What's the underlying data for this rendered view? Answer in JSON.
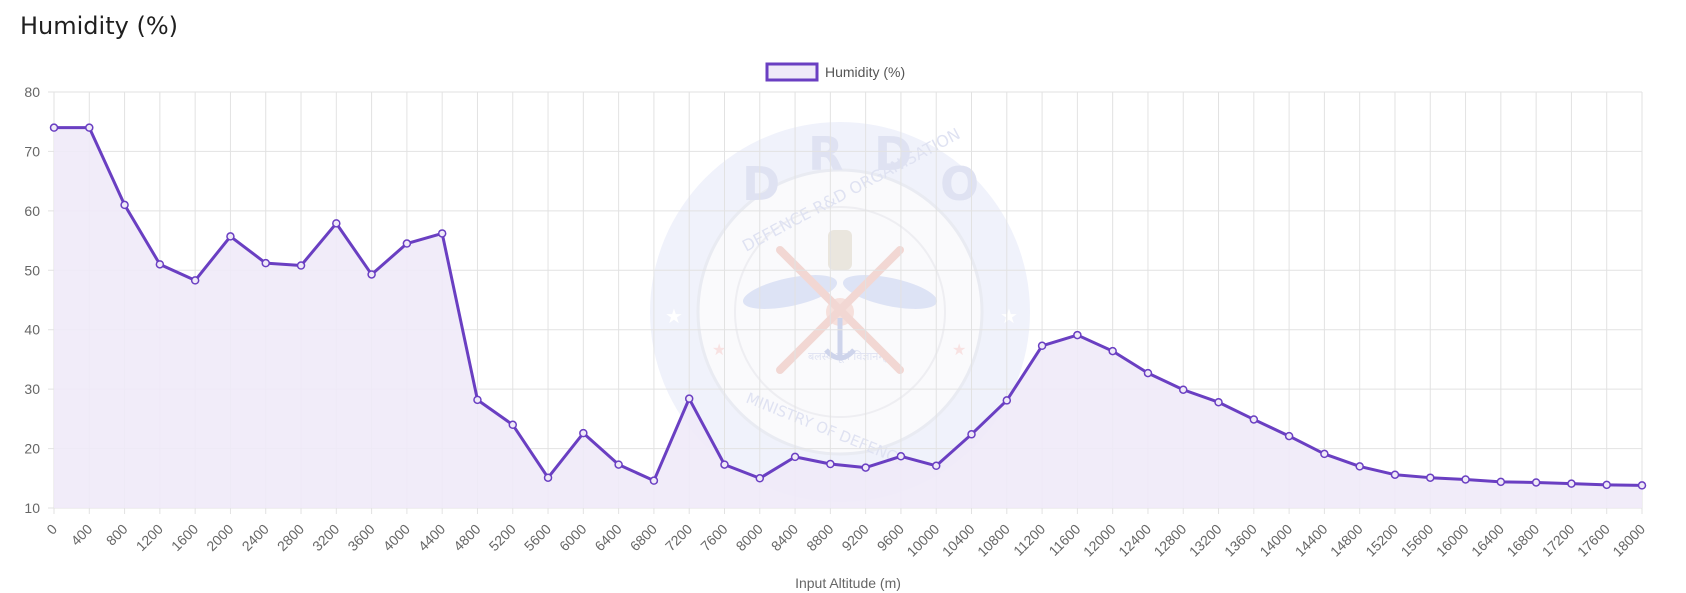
{
  "page": {
    "title": "Humidity (%)"
  },
  "watermark": {
    "top_letters": [
      "D",
      "R",
      "D",
      "O"
    ],
    "ring_text": "DEFENCE R&D ORGANISATION",
    "bottom_text": "MINISTRY OF DEFENCE",
    "hindi_text": "बलस्य मूलं विज्ञानम्"
  },
  "chart_data": {
    "type": "line",
    "title": "",
    "xlabel": "Input Altitude (m)",
    "ylabel": "",
    "ylim": [
      10,
      80
    ],
    "yticks": [
      10,
      20,
      30,
      40,
      50,
      60,
      70,
      80
    ],
    "grid": true,
    "legend_position": "top-center",
    "colors": {
      "line": "#6a3fc2",
      "fill": "#efeaf8",
      "grid": "#e2e2e2",
      "tick": "#666666"
    },
    "x": [
      0,
      400,
      800,
      1200,
      1600,
      2000,
      2400,
      2800,
      3200,
      3600,
      4000,
      4400,
      4800,
      5200,
      5600,
      6000,
      6400,
      6800,
      7200,
      7600,
      8000,
      8400,
      8800,
      9200,
      9600,
      10000,
      10400,
      10800,
      11200,
      11600,
      12000,
      12400,
      12800,
      13200,
      13600,
      14000,
      14400,
      14800,
      15200,
      15600,
      16000,
      16400,
      16800,
      17200,
      17600,
      18000
    ],
    "series": [
      {
        "name": "Humidity (%)",
        "values": [
          74,
          74,
          61,
          51,
          48.3,
          55.7,
          51.2,
          50.8,
          57.9,
          49.3,
          54.5,
          56.2,
          28.2,
          24,
          15.1,
          22.6,
          17.3,
          14.6,
          28.4,
          17.3,
          15,
          18.6,
          17.4,
          16.8,
          18.7,
          17.1,
          22.4,
          28.1,
          37.3,
          39.1,
          36.4,
          32.7,
          29.9,
          27.8,
          24.9,
          22.1,
          19.1,
          17,
          15.6,
          15.1,
          14.8,
          14.4,
          14.3,
          14.1,
          13.9,
          13.8
        ]
      }
    ]
  }
}
